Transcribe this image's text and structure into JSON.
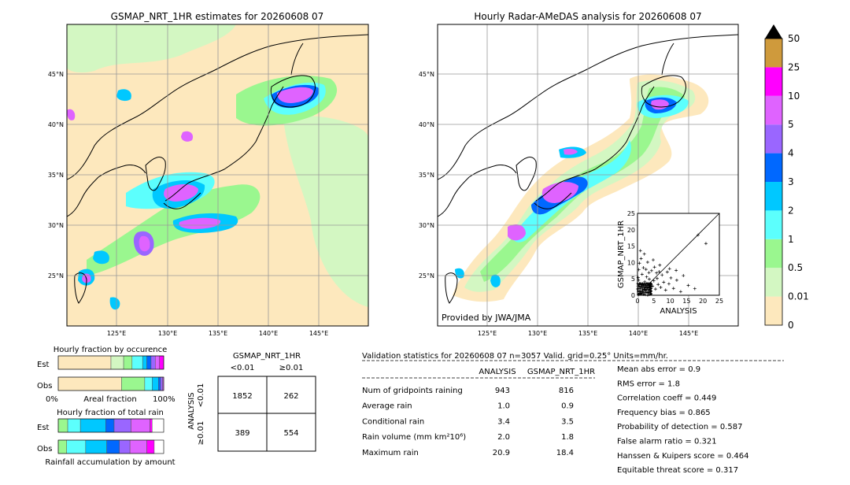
{
  "maps": {
    "left_title": "GSMAP_NRT_1HR estimates for 20260608 07",
    "right_title": "Hourly Radar-AMeDAS analysis for 20260608 07",
    "lon_ticks": [
      "125°E",
      "130°E",
      "135°E",
      "140°E",
      "145°E"
    ],
    "lat_ticks": [
      "45°N",
      "40°N",
      "35°N",
      "30°N",
      "25°N"
    ],
    "credit": "Provided by JWA/JMA"
  },
  "colorbar": {
    "labels": [
      "0",
      "0.01",
      "0.5",
      "1",
      "2",
      "3",
      "4",
      "5",
      "10",
      "25",
      "50"
    ],
    "colors": [
      "#fde8bd",
      "#d3f7c2",
      "#9af78f",
      "#5cfffd",
      "#00c8ff",
      "#0068ff",
      "#9a66ff",
      "#df63ff",
      "#ff00ff",
      "#cf9a3c"
    ],
    "extend_color": "#000000"
  },
  "scatter": {
    "xlabel": "ANALYSIS",
    "ylabel": "GSMAP_NRT_1HR",
    "ticks": [
      "0",
      "5",
      "10",
      "15",
      "20",
      "25"
    ]
  },
  "fraction_charts": {
    "occurrence_title": "Hourly fraction by occurence",
    "total_title": "Hourly fraction of total rain",
    "accum_label": "Rainfall accumulation by amount",
    "row_est": "Est",
    "row_obs": "Obs",
    "axis_left": "0%",
    "axis_mid": "Areal fraction",
    "axis_right": "100%"
  },
  "contingency": {
    "title": "GSMAP_NRT_1HR",
    "col_lt": "<0.01",
    "col_ge": "≥0.01",
    "row_axis": "ANALYSIS",
    "row_lt": "<0.01",
    "row_ge": "≥0.01",
    "cells": [
      "1852",
      "262",
      "389",
      "554"
    ]
  },
  "validation": {
    "header": "Validation statistics for 20260608 07  n=3057 Valid. grid=0.25° Units=mm/hr.",
    "col_analysis": "ANALYSIS",
    "col_gsmap": "GSMAP_NRT_1HR",
    "rows": [
      {
        "label": "Num of gridpoints raining",
        "analysis": "943",
        "gsmap": "816"
      },
      {
        "label": "Average rain",
        "analysis": "1.0",
        "gsmap": "0.9"
      },
      {
        "label": "Conditional rain",
        "analysis": "3.4",
        "gsmap": "3.5"
      },
      {
        "label": "Rain volume (mm km²10⁶)",
        "analysis": "2.0",
        "gsmap": "1.8"
      },
      {
        "label": "Maximum rain",
        "analysis": "20.9",
        "gsmap": "18.4"
      }
    ],
    "scores": [
      "Mean abs error =    0.9",
      "RMS error =    1.8",
      "Correlation coeff =  0.449",
      "Frequency bias =  0.865",
      "Probability of detection =  0.587",
      "False alarm ratio =  0.321",
      "Hanssen & Kuipers score =  0.464",
      "Equitable threat score =  0.317"
    ]
  },
  "chart_data": [
    {
      "type": "heatmap",
      "title": "GSMAP_NRT_1HR estimates for 20260608 07",
      "xlabel": "",
      "ylabel": "",
      "xlim": [
        120,
        150
      ],
      "ylim": [
        20,
        50
      ],
      "x_ticks": [
        125,
        130,
        135,
        140,
        145
      ],
      "y_ticks": [
        25,
        30,
        35,
        40,
        45
      ],
      "levels": [
        0,
        0.01,
        0.5,
        1,
        2,
        3,
        4,
        5,
        10,
        25,
        50
      ],
      "grid": true
    },
    {
      "type": "heatmap",
      "title": "Hourly Radar-AMeDAS analysis for 20260608 07",
      "xlabel": "",
      "ylabel": "",
      "xlim": [
        120,
        150
      ],
      "ylim": [
        20,
        50
      ],
      "x_ticks": [
        125,
        130,
        135,
        140,
        145
      ],
      "y_ticks": [
        25,
        30,
        35,
        40,
        45
      ],
      "levels": [
        0,
        0.01,
        0.5,
        1,
        2,
        3,
        4,
        5,
        10,
        25,
        50
      ],
      "grid": true
    },
    {
      "type": "scatter",
      "xlabel": "ANALYSIS",
      "ylabel": "GSMAP_NRT_1HR",
      "xlim": [
        0,
        25
      ],
      "ylim": [
        0,
        25
      ],
      "points": [
        [
          0.3,
          0.2
        ],
        [
          0.5,
          1.1
        ],
        [
          0.8,
          0.4
        ],
        [
          1.0,
          2.5
        ],
        [
          1.2,
          0.6
        ],
        [
          1.5,
          3.2
        ],
        [
          1.7,
          1.0
        ],
        [
          2.0,
          0.3
        ],
        [
          2.2,
          4.1
        ],
        [
          2.5,
          1.5
        ],
        [
          2.8,
          5.6
        ],
        [
          3.0,
          2.2
        ],
        [
          3.3,
          0.8
        ],
        [
          3.5,
          6.9
        ],
        [
          3.8,
          3.0
        ],
        [
          4.0,
          1.2
        ],
        [
          4.3,
          7.5
        ],
        [
          4.6,
          2.8
        ],
        [
          5.0,
          4.4
        ],
        [
          5.2,
          8.6
        ],
        [
          5.5,
          1.9
        ],
        [
          6.0,
          5.1
        ],
        [
          6.3,
          3.3
        ],
        [
          6.8,
          9.2
        ],
        [
          7.1,
          2.4
        ],
        [
          7.5,
          6.2
        ],
        [
          8.0,
          4.0
        ],
        [
          8.6,
          1.6
        ],
        [
          9.1,
          7.1
        ],
        [
          9.6,
          3.5
        ],
        [
          10.2,
          5.3
        ],
        [
          11.0,
          2.1
        ],
        [
          12.0,
          4.6
        ],
        [
          13.2,
          1.1
        ],
        [
          14.0,
          6.0
        ],
        [
          15.5,
          3.0
        ],
        [
          17.5,
          2.0
        ],
        [
          20.9,
          15.8
        ],
        [
          18.5,
          18.4
        ],
        [
          0.6,
          9.8
        ],
        [
          1.1,
          11.2
        ],
        [
          0.4,
          7.8
        ],
        [
          2.1,
          12.6
        ],
        [
          1.8,
          8.4
        ],
        [
          0.9,
          13.6
        ],
        [
          3.1,
          10.1
        ],
        [
          0.2,
          5.4
        ],
        [
          0.7,
          3.6
        ],
        [
          1.4,
          6.4
        ],
        [
          2.6,
          7.9
        ],
        [
          0.1,
          1.9
        ],
        [
          0.3,
          4.6
        ],
        [
          4.8,
          10.8
        ],
        [
          5.8,
          6.8
        ],
        [
          3.6,
          4.9
        ],
        [
          6.6,
          7.2
        ],
        [
          9.8,
          8.1
        ],
        [
          11.8,
          7.6
        ]
      ],
      "diagonal": true
    },
    {
      "type": "bar",
      "title": "Hourly fraction by occurence",
      "categories": [
        "Est",
        "Obs"
      ],
      "series": [
        {
          "values": [
            0.5,
            0.6
          ]
        },
        {
          "values": [
            0.12,
            0.0
          ]
        },
        {
          "values": [
            0.08,
            0.22
          ]
        },
        {
          "values": [
            0.1,
            0.07
          ]
        },
        {
          "values": [
            0.04,
            0.06
          ]
        },
        {
          "values": [
            0.04,
            0.02
          ]
        },
        {
          "values": [
            0.04,
            0.02
          ]
        },
        {
          "values": [
            0.04,
            0.01
          ]
        },
        {
          "values": [
            0.04,
            0.0
          ]
        }
      ],
      "colors": [
        "#fde8bd",
        "#d3f7c2",
        "#9af78f",
        "#5cfffd",
        "#00c8ff",
        "#0068ff",
        "#9a66ff",
        "#df63ff",
        "#ff00ff"
      ],
      "stacked": true,
      "orientation": "horizontal",
      "xlim": [
        0,
        1
      ]
    },
    {
      "type": "bar",
      "title": "Hourly fraction of total rain",
      "categories": [
        "Est",
        "Obs"
      ],
      "series": [
        {
          "values": [
            0.09,
            0.08
          ]
        },
        {
          "values": [
            0.12,
            0.18
          ]
        },
        {
          "values": [
            0.24,
            0.2
          ]
        },
        {
          "values": [
            0.08,
            0.12
          ]
        },
        {
          "values": [
            0.16,
            0.1
          ]
        },
        {
          "values": [
            0.18,
            0.16
          ]
        },
        {
          "values": [
            0.02,
            0.07
          ]
        }
      ],
      "colors": [
        "#9af78f",
        "#5cfffd",
        "#00c8ff",
        "#0068ff",
        "#9a66ff",
        "#df63ff",
        "#ff00ff"
      ],
      "stacked": true,
      "orientation": "horizontal",
      "xlim": [
        0,
        1
      ]
    }
  ]
}
